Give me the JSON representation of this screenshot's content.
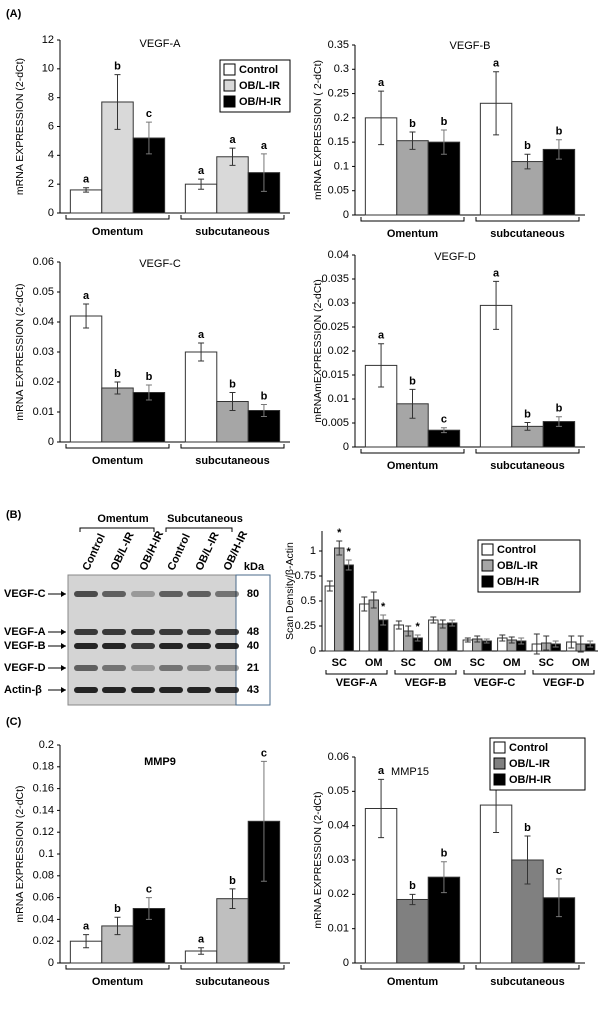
{
  "panel_labels": [
    "(A)",
    "(B)",
    "(C)"
  ],
  "blot": {
    "groups": [
      "Omentum",
      "Subcutaneous"
    ],
    "lanes": [
      "Control",
      "OB/L-IR",
      "OB/H-IR",
      "Control",
      "OB/L-IR",
      "OB/H-IR"
    ],
    "unit": "kDa",
    "rows": [
      {
        "label": "VEGF-C",
        "kda": 80
      },
      {
        "label": "VEGF-A",
        "kda": 48
      },
      {
        "label": "VEGF-B",
        "kda": 40
      },
      {
        "label": "VEGF-D",
        "kda": 21
      },
      {
        "label": "Actin-β",
        "kda": 43
      }
    ]
  },
  "chart_data": [
    {
      "type": "bar",
      "title": "VEGF-A",
      "y_label": "mRNA EXPRESSION (2-dCt)",
      "categories": [
        "Omentum",
        "subcutaneous"
      ],
      "series": [
        {
          "name": "Control",
          "color": "#ffffff",
          "values": [
            1.6,
            2.0
          ],
          "errors": [
            0.15,
            0.35
          ],
          "labels": [
            "a",
            "a"
          ]
        },
        {
          "name": "OB/L-IR",
          "color": "#d9d9d9",
          "values": [
            7.7,
            3.9
          ],
          "errors": [
            1.9,
            0.6
          ],
          "labels": [
            "b",
            "a"
          ]
        },
        {
          "name": "OB/H-IR",
          "color": "#000000",
          "values": [
            5.2,
            2.8
          ],
          "errors": [
            1.1,
            1.3
          ],
          "labels": [
            "c",
            "a"
          ]
        }
      ],
      "ylim": [
        0,
        12
      ],
      "yticks": [
        0,
        2,
        4,
        6,
        8,
        10,
        12
      ],
      "legend": "upper right"
    },
    {
      "type": "bar",
      "title": "VEGF-B",
      "y_label": "mRNA EXPRESSION ( 2-dCt)",
      "categories": [
        "Omentum",
        "subcutaneous"
      ],
      "series": [
        {
          "color": "#ffffff",
          "values": [
            0.2,
            0.23
          ],
          "errors": [
            0.055,
            0.065
          ],
          "labels": [
            "a",
            "a"
          ]
        },
        {
          "color": "#a6a6a6",
          "values": [
            0.153,
            0.11
          ],
          "errors": [
            0.018,
            0.015
          ],
          "labels": [
            "b",
            "b"
          ]
        },
        {
          "color": "#000000",
          "values": [
            0.15,
            0.135
          ],
          "errors": [
            0.025,
            0.02
          ],
          "labels": [
            "b",
            "b"
          ]
        }
      ],
      "ylim": [
        0,
        0.35
      ],
      "yticks": [
        0,
        0.05,
        0.1,
        0.15,
        0.2,
        0.25,
        0.3,
        0.35
      ]
    },
    {
      "type": "bar",
      "title": "VEGF-C",
      "y_label": "mRNA EXPRESSION (2-dCt)",
      "categories": [
        "Omentum",
        "subcutaneous"
      ],
      "series": [
        {
          "color": "#ffffff",
          "values": [
            0.042,
            0.03
          ],
          "errors": [
            0.004,
            0.003
          ],
          "labels": [
            "a",
            "a"
          ]
        },
        {
          "color": "#a6a6a6",
          "values": [
            0.018,
            0.0135
          ],
          "errors": [
            0.002,
            0.003
          ],
          "labels": [
            "b",
            "b"
          ]
        },
        {
          "color": "#000000",
          "values": [
            0.0165,
            0.0105
          ],
          "errors": [
            0.0025,
            0.002
          ],
          "labels": [
            "b",
            "b"
          ]
        }
      ],
      "ylim": [
        0,
        0.06
      ],
      "yticks": [
        0,
        0.01,
        0.02,
        0.03,
        0.04,
        0.05,
        0.06
      ]
    },
    {
      "type": "bar",
      "title": "VEGF-D",
      "y_label": "mRNAmEXPRESSION (2-dCt)",
      "categories": [
        "Omentum",
        "subcutaneous"
      ],
      "series": [
        {
          "color": "#ffffff",
          "values": [
            0.017,
            0.0295
          ],
          "errors": [
            0.0045,
            0.005
          ],
          "labels": [
            "a",
            "a"
          ]
        },
        {
          "color": "#a6a6a6",
          "values": [
            0.009,
            0.0043
          ],
          "errors": [
            0.003,
            0.0008
          ],
          "labels": [
            "b",
            "b"
          ]
        },
        {
          "color": "#000000",
          "values": [
            0.0035,
            0.0053
          ],
          "errors": [
            0.0005,
            0.001
          ],
          "labels": [
            "c",
            "b"
          ]
        }
      ],
      "ylim": [
        0,
        0.04
      ],
      "yticks": [
        0,
        0.005,
        0.01,
        0.015,
        0.02,
        0.025,
        0.03,
        0.035,
        0.04
      ]
    },
    {
      "type": "bar",
      "y_label": "Scan Density/β-Actin",
      "categories": [
        "SC",
        "OM",
        "SC",
        "OM",
        "SC",
        "OM",
        "SC",
        "OM"
      ],
      "groups": [
        "VEGF-A",
        "VEGF-B",
        "VEGF-C",
        "VEGF-D"
      ],
      "series": [
        {
          "name": "Control",
          "color": "#ffffff",
          "values": [
            0.65,
            0.47,
            0.26,
            0.31,
            0.11,
            0.13,
            0.07,
            0.09
          ],
          "errors": [
            0.05,
            0.07,
            0.04,
            0.03,
            0.02,
            0.03,
            0.1,
            0.06
          ]
        },
        {
          "name": "OB/L-IR",
          "color": "#a6a6a6",
          "values": [
            1.03,
            0.51,
            0.2,
            0.27,
            0.12,
            0.11,
            0.08,
            0.07
          ],
          "errors": [
            0.07,
            0.08,
            0.05,
            0.04,
            0.03,
            0.03,
            0.07,
            0.08
          ],
          "labels": [
            "*",
            null,
            null,
            null,
            null,
            null,
            null,
            null
          ]
        },
        {
          "name": "OB/H-IR",
          "color": "#000000",
          "values": [
            0.86,
            0.31,
            0.13,
            0.28,
            0.1,
            0.1,
            0.07,
            0.07
          ],
          "errors": [
            0.05,
            0.05,
            0.03,
            0.03,
            0.02,
            0.03,
            0.03,
            0.03
          ],
          "labels": [
            "*",
            "*",
            "*",
            null,
            null,
            null,
            null,
            null
          ]
        }
      ],
      "ylim": [
        0,
        1.2
      ],
      "yticks": [
        0,
        0.25,
        0.5,
        0.75,
        1
      ],
      "legend": "upper right"
    },
    {
      "type": "bar",
      "title": "MMP9",
      "y_label": "mRNA EXPRESSION (2-dCt)",
      "categories": [
        "Omentum",
        "subcutaneous"
      ],
      "series": [
        {
          "color": "#ffffff",
          "values": [
            0.02,
            0.011
          ],
          "errors": [
            0.006,
            0.003
          ],
          "labels": [
            "a",
            "a"
          ]
        },
        {
          "color": "#bfbfbf",
          "values": [
            0.034,
            0.059
          ],
          "errors": [
            0.008,
            0.009
          ],
          "labels": [
            "b",
            "b"
          ]
        },
        {
          "color": "#000000",
          "values": [
            0.05,
            0.13
          ],
          "errors": [
            0.01,
            0.055
          ],
          "labels": [
            "c",
            "c"
          ]
        }
      ],
      "ylim": [
        0,
        0.2
      ],
      "yticks": [
        0,
        0.02,
        0.04,
        0.06,
        0.08,
        0.1,
        0.12,
        0.14,
        0.16,
        0.18,
        0.2
      ]
    },
    {
      "type": "bar",
      "title": "MMP15",
      "y_label": "mRNA EXPRESSION (2-dCt)",
      "categories": [
        "Omentum",
        "subcutaneous"
      ],
      "series": [
        {
          "name": "Control",
          "color": "#ffffff",
          "values": [
            0.045,
            0.046
          ],
          "errors": [
            0.0085,
            0.008
          ],
          "labels": [
            "a",
            "a"
          ]
        },
        {
          "name": "OB/L-IR",
          "color": "#808080",
          "values": [
            0.0185,
            0.03
          ],
          "errors": [
            0.0015,
            0.007
          ],
          "labels": [
            "b",
            "b"
          ]
        },
        {
          "name": "OB/H-IR",
          "color": "#000000",
          "values": [
            0.025,
            0.019
          ],
          "errors": [
            0.0045,
            0.0055
          ],
          "labels": [
            "b",
            "c"
          ]
        }
      ],
      "ylim": [
        0,
        0.06
      ],
      "yticks": [
        0,
        0.01,
        0.02,
        0.03,
        0.04,
        0.05,
        0.06
      ],
      "legend": "upper right"
    }
  ]
}
